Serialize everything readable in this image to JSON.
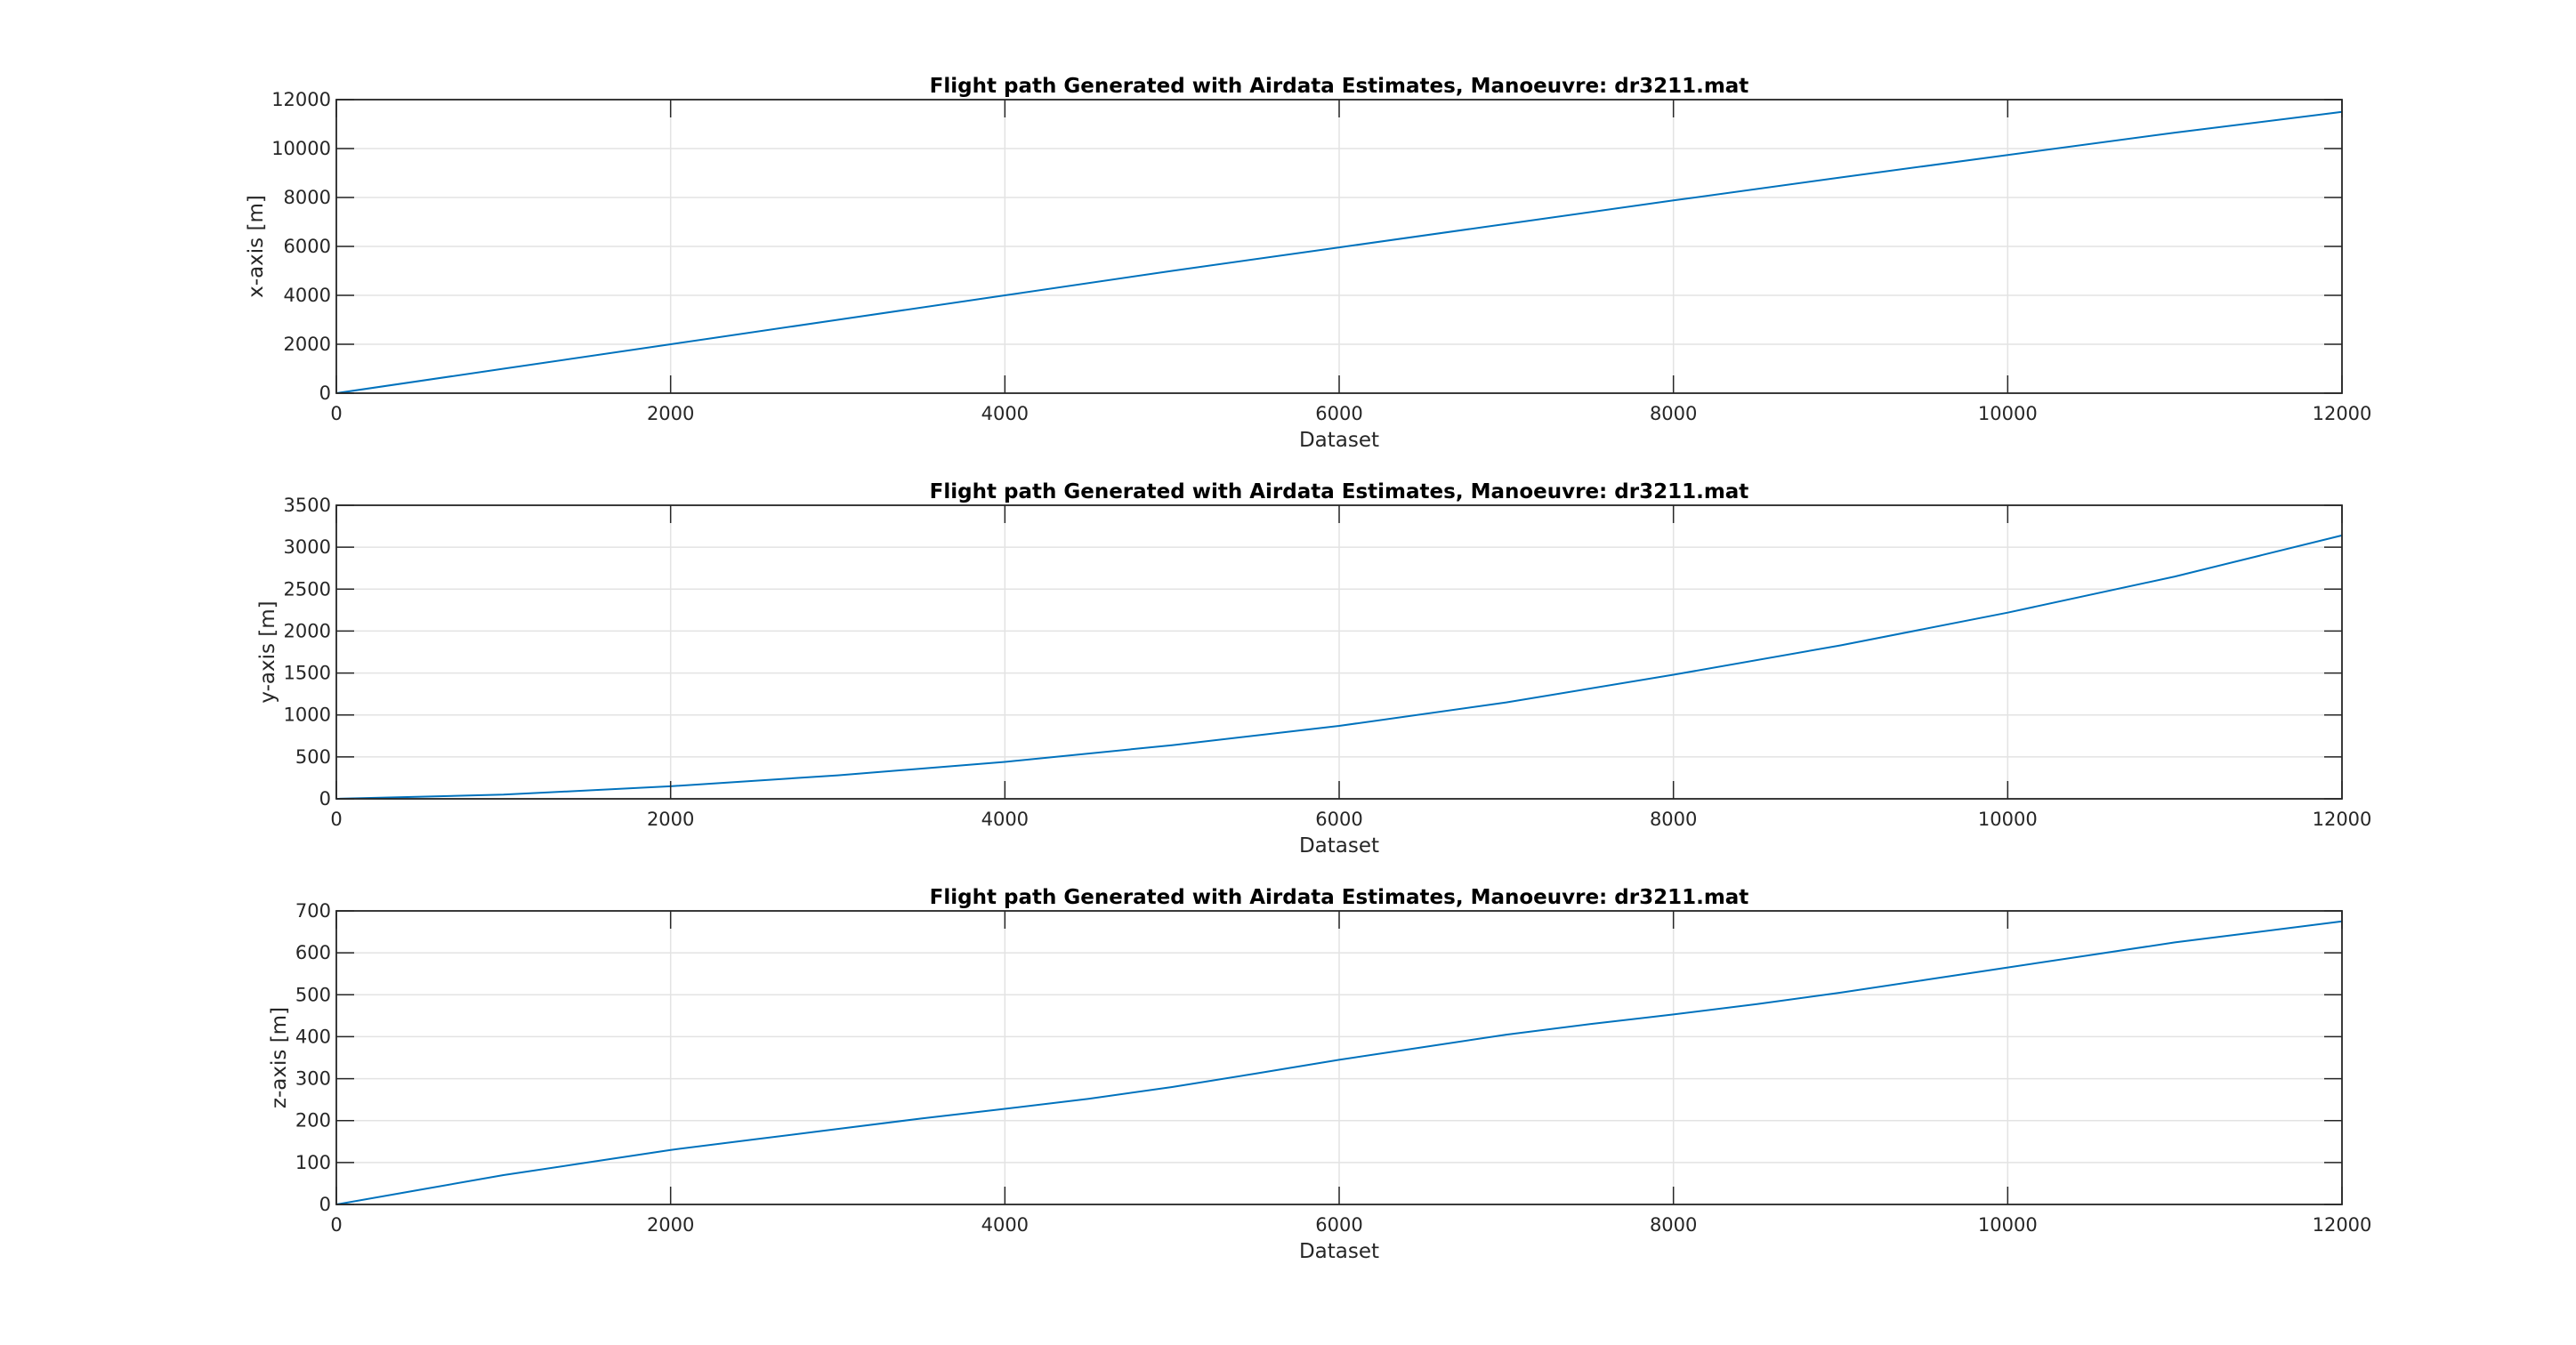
{
  "chart_data": [
    {
      "type": "line",
      "title": "Flight path Generated with Airdata Estimates, Manoeuvre: dr3211.mat",
      "xlabel": "Dataset",
      "ylabel": "x-axis [m]",
      "xlim": [
        0,
        12000
      ],
      "ylim": [
        0,
        12000
      ],
      "xticks": [
        0,
        2000,
        4000,
        6000,
        8000,
        10000,
        12000
      ],
      "yticks": [
        0,
        2000,
        4000,
        6000,
        8000,
        10000,
        12000
      ],
      "xtick_labels": [
        "0",
        "2000",
        "4000",
        "6000",
        "8000",
        "10000",
        "12000"
      ],
      "ytick_labels": [
        "0",
        "2000",
        "4000",
        "6000",
        "8000",
        "10000",
        "12000"
      ],
      "grid": true,
      "color": "#0072bd",
      "series": [
        {
          "x": [
            0,
            1000,
            2000,
            3000,
            4000,
            5000,
            6000,
            7000,
            8000,
            9000,
            10000,
            11000,
            12000
          ],
          "y": [
            0,
            1000,
            2000,
            3000,
            4000,
            5000,
            5960,
            6920,
            7880,
            8820,
            9740,
            10650,
            11500
          ]
        }
      ]
    },
    {
      "type": "line",
      "title": "Flight path Generated with Airdata Estimates, Manoeuvre: dr3211.mat",
      "xlabel": "Dataset",
      "ylabel": "y-axis [m]",
      "xlim": [
        0,
        12000
      ],
      "ylim": [
        0,
        3500
      ],
      "xticks": [
        0,
        2000,
        4000,
        6000,
        8000,
        10000,
        12000
      ],
      "yticks": [
        0,
        500,
        1000,
        1500,
        2000,
        2500,
        3000,
        3500
      ],
      "xtick_labels": [
        "0",
        "2000",
        "4000",
        "6000",
        "8000",
        "10000",
        "12000"
      ],
      "ytick_labels": [
        "0",
        "500",
        "1000",
        "1500",
        "2000",
        "2500",
        "3000",
        "3500"
      ],
      "grid": true,
      "color": "#0072bd",
      "series": [
        {
          "x": [
            0,
            1000,
            2000,
            3000,
            4000,
            5000,
            6000,
            7000,
            8000,
            9000,
            10000,
            11000,
            12000
          ],
          "y": [
            0,
            50,
            150,
            280,
            440,
            640,
            870,
            1150,
            1480,
            1830,
            2220,
            2650,
            3140
          ]
        }
      ]
    },
    {
      "type": "line",
      "title": "Flight path Generated with Airdata Estimates, Manoeuvre: dr3211.mat",
      "xlabel": "Dataset",
      "ylabel": "z-axis [m]",
      "xlim": [
        0,
        12000
      ],
      "ylim": [
        0,
        700
      ],
      "xticks": [
        0,
        2000,
        4000,
        6000,
        8000,
        10000,
        12000
      ],
      "yticks": [
        0,
        100,
        200,
        300,
        400,
        500,
        600,
        700
      ],
      "xtick_labels": [
        "0",
        "2000",
        "4000",
        "6000",
        "8000",
        "10000",
        "12000"
      ],
      "ytick_labels": [
        "0",
        "100",
        "200",
        "300",
        "400",
        "500",
        "600",
        "700"
      ],
      "grid": true,
      "color": "#0072bd",
      "series": [
        {
          "x": [
            0,
            500,
            1000,
            1500,
            2000,
            2500,
            3000,
            3500,
            4000,
            4500,
            5000,
            5500,
            6000,
            6500,
            7000,
            7500,
            8000,
            8500,
            9000,
            9500,
            10000,
            10500,
            11000,
            11500,
            12000
          ],
          "y": [
            0,
            35,
            70,
            100,
            130,
            155,
            180,
            205,
            228,
            252,
            280,
            312,
            345,
            375,
            405,
            430,
            453,
            478,
            505,
            535,
            565,
            595,
            625,
            650,
            675
          ]
        }
      ]
    }
  ]
}
